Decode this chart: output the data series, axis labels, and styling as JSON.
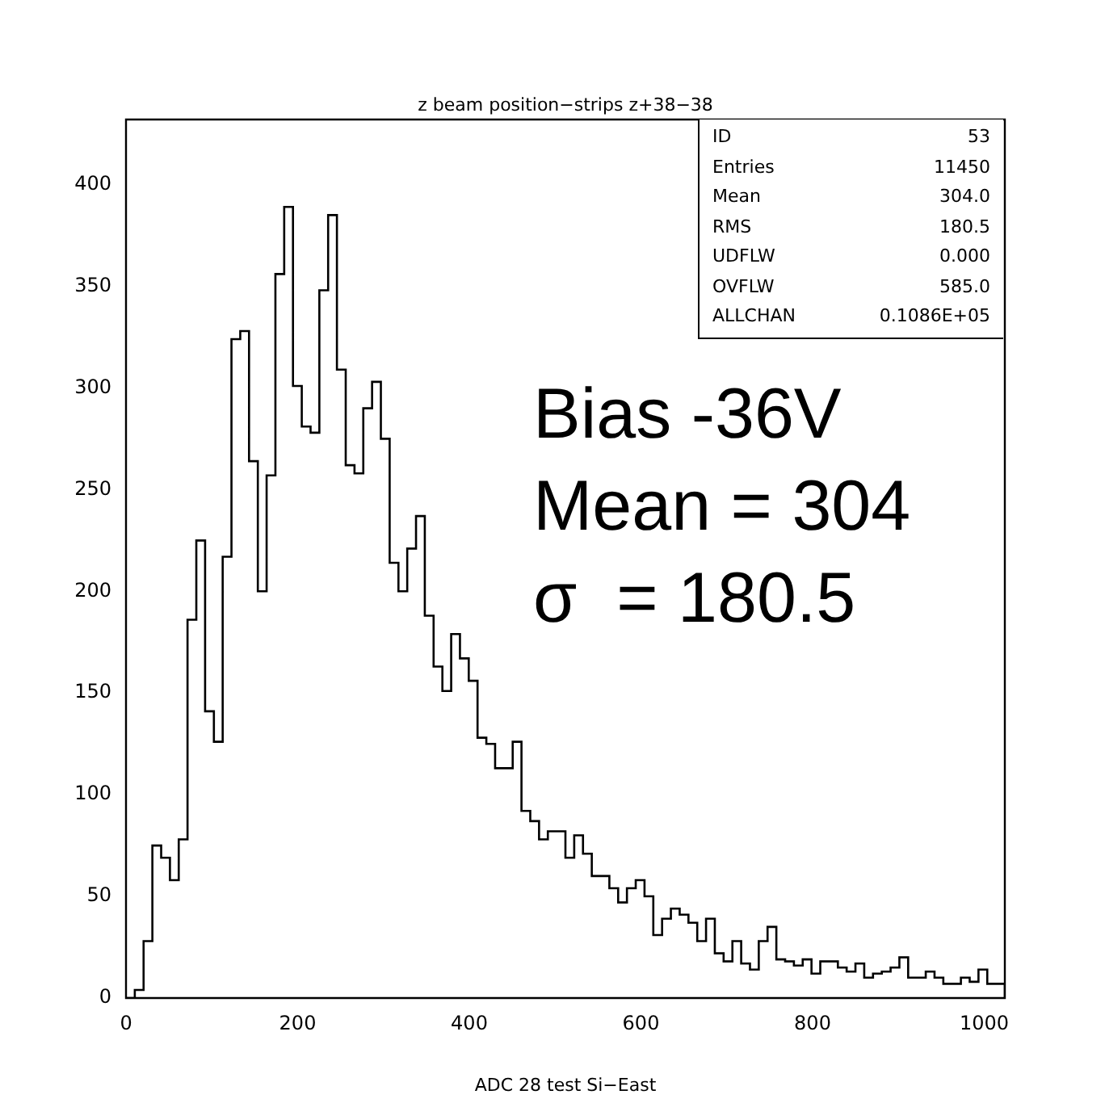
{
  "chart_data": {
    "type": "histogram",
    "title": "z beam position−strips z+38−38",
    "xlabel": "ADC 28 test Si−East",
    "bins": [
      0,
      10.24,
      20.48,
      30.72,
      40.96,
      51.2,
      61.44,
      71.68,
      81.92,
      92.16,
      102.4,
      112.64,
      122.88,
      133.12,
      143.36,
      153.6,
      163.84,
      174.08,
      184.32,
      194.56,
      204.8,
      215.04,
      225.28,
      235.52,
      245.76,
      256,
      266.24,
      276.48,
      286.72,
      296.96,
      307.2,
      317.44,
      327.68,
      337.92,
      348.16,
      358.4,
      368.64,
      378.88,
      389.12,
      399.36,
      409.6,
      419.84,
      430.08,
      440.32,
      450.56,
      460.8,
      471.04,
      481.28,
      491.52,
      501.76,
      512,
      522.24,
      532.48,
      542.72,
      552.96,
      563.2,
      573.44,
      583.68,
      593.92,
      604.16,
      614.4,
      624.64,
      634.88,
      645.12,
      655.36,
      665.6,
      675.84,
      686.08,
      696.32,
      706.56,
      716.8,
      727.04,
      737.28,
      747.52,
      757.76,
      768,
      778.24,
      788.48,
      798.72,
      808.96,
      819.2,
      829.44,
      839.68,
      849.92,
      860.16,
      870.4,
      880.64,
      890.88,
      901.12,
      911.36,
      921.6,
      931.84,
      942.08,
      952.32,
      962.56,
      972.8,
      983.04,
      993.28,
      1003.52,
      1013.76,
      1024
    ],
    "values": [
      0,
      4,
      28,
      75,
      69,
      58,
      78,
      186,
      225,
      141,
      126,
      217,
      324,
      328,
      264,
      200,
      257,
      356,
      389,
      301,
      281,
      278,
      348,
      385,
      309,
      262,
      258,
      290,
      303,
      275,
      214,
      200,
      221,
      237,
      188,
      163,
      151,
      179,
      167,
      156,
      128,
      125,
      113,
      113,
      126,
      92,
      87,
      78,
      82,
      82,
      69,
      80,
      71,
      60,
      60,
      54,
      47,
      54,
      58,
      50,
      31,
      39,
      44,
      41,
      37,
      28,
      39,
      22,
      18,
      28,
      17,
      14,
      28,
      35,
      19,
      18,
      16,
      19,
      12,
      18,
      18,
      15,
      13,
      17,
      10,
      12,
      13,
      15,
      20,
      10,
      10,
      13,
      10,
      7,
      7,
      10,
      8,
      14,
      7,
      7
    ],
    "color": "#000000",
    "xlim": [
      0,
      1024
    ],
    "xticks": [
      0,
      200,
      400,
      600,
      800,
      1000
    ],
    "ylim": [
      0,
      432
    ],
    "yticks": [
      0,
      50,
      100,
      150,
      200,
      250,
      300,
      350,
      400
    ],
    "annotations": [
      "ID 53",
      "Entries 11450",
      "Mean 304.0",
      "RMS 180.5",
      "UDFLW 0.000",
      "OVFLW 585.0",
      "ALLCHAN 0.1086E+05",
      "Bias -36V\nMean = 304\nσ  = 180.5"
    ]
  }
}
